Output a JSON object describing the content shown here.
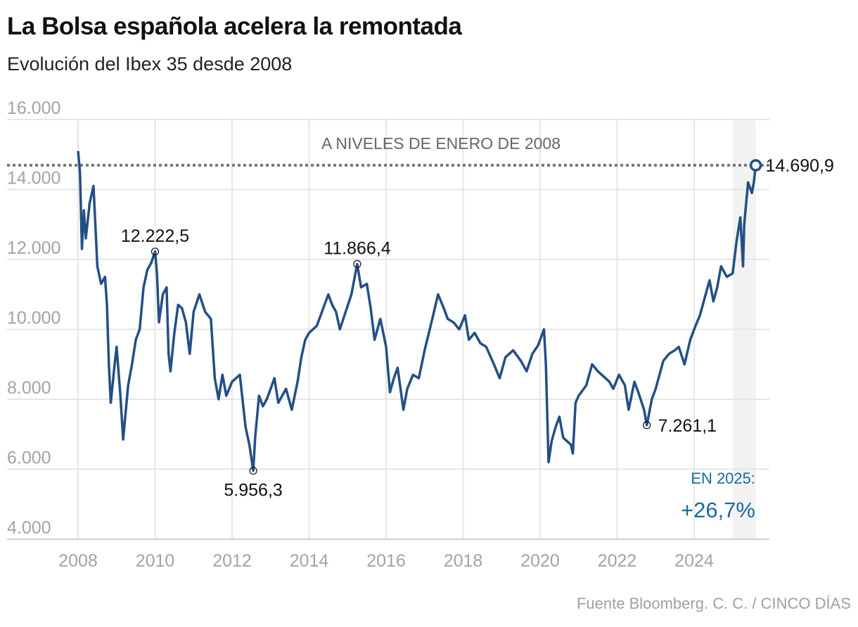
{
  "chart_data": {
    "type": "line",
    "title": "La Bolsa española acelera la remontada",
    "subtitle": "Evolución del Ibex 35 desde 2008",
    "source": "Fuente Bloomberg. C. C. / CINCO DÍAS",
    "xlim": [
      2008,
      2025.6
    ],
    "ylim": [
      4000,
      16000
    ],
    "x_ticks": [
      2008,
      2010,
      2012,
      2014,
      2016,
      2018,
      2020,
      2022,
      2024
    ],
    "x_tick_labels": [
      "2008",
      "2010",
      "2012",
      "2014",
      "2016",
      "2018",
      "2020",
      "2022",
      "2024"
    ],
    "y_ticks": [
      4000,
      6000,
      8000,
      10000,
      12000,
      14000,
      16000
    ],
    "y_tick_labels": [
      "4.000",
      "6.000",
      "8.000",
      "10.000",
      "12.000",
      "14.000",
      "16.000"
    ],
    "grid": true,
    "line_color": "#234f85",
    "reference_line": {
      "value": 14690.9,
      "label": "A NIVELES DE ENERO DE 2008",
      "color": "#777777"
    },
    "highlight_band": {
      "from": 2025.0,
      "to": 2025.6,
      "color": "#f2f2f2"
    },
    "annotations": [
      {
        "x": 2010.0,
        "y": 12222.5,
        "label": "12.222,5",
        "position": "above"
      },
      {
        "x": 2012.55,
        "y": 5956.3,
        "label": "5.956,3",
        "position": "below"
      },
      {
        "x": 2015.25,
        "y": 11866.4,
        "label": "11.866,4",
        "position": "above"
      },
      {
        "x": 2022.77,
        "y": 7261.1,
        "label": "7.261,1",
        "position": "right"
      },
      {
        "x": 2025.6,
        "y": 14690.9,
        "label": "14.690,9",
        "position": "right",
        "highlight": true
      }
    ],
    "ytd": {
      "label": "EN 2025:",
      "value": "+26,7%",
      "color": "#1a6aa0"
    },
    "series": [
      {
        "points": [
          [
            2008.0,
            15100
          ],
          [
            2008.05,
            14500
          ],
          [
            2008.1,
            12300
          ],
          [
            2008.15,
            13400
          ],
          [
            2008.2,
            12600
          ],
          [
            2008.25,
            13100
          ],
          [
            2008.3,
            13600
          ],
          [
            2008.4,
            14100
          ],
          [
            2008.45,
            13000
          ],
          [
            2008.5,
            11800
          ],
          [
            2008.6,
            11300
          ],
          [
            2008.7,
            11500
          ],
          [
            2008.75,
            10700
          ],
          [
            2008.8,
            9000
          ],
          [
            2008.85,
            7900
          ],
          [
            2008.95,
            9000
          ],
          [
            2009.0,
            9500
          ],
          [
            2009.1,
            8100
          ],
          [
            2009.17,
            6850
          ],
          [
            2009.3,
            8400
          ],
          [
            2009.4,
            9000
          ],
          [
            2009.5,
            9700
          ],
          [
            2009.6,
            10000
          ],
          [
            2009.7,
            11200
          ],
          [
            2009.8,
            11700
          ],
          [
            2009.9,
            11900
          ],
          [
            2010.0,
            12222.5
          ],
          [
            2010.05,
            11600
          ],
          [
            2010.1,
            10200
          ],
          [
            2010.2,
            11000
          ],
          [
            2010.3,
            11200
          ],
          [
            2010.35,
            9300
          ],
          [
            2010.4,
            8800
          ],
          [
            2010.5,
            9900
          ],
          [
            2010.6,
            10700
          ],
          [
            2010.7,
            10600
          ],
          [
            2010.8,
            10200
          ],
          [
            2010.9,
            9300
          ],
          [
            2011.0,
            10500
          ],
          [
            2011.15,
            11000
          ],
          [
            2011.3,
            10500
          ],
          [
            2011.45,
            10300
          ],
          [
            2011.55,
            8600
          ],
          [
            2011.65,
            8000
          ],
          [
            2011.75,
            8700
          ],
          [
            2011.85,
            8100
          ],
          [
            2012.0,
            8500
          ],
          [
            2012.2,
            8700
          ],
          [
            2012.35,
            7200
          ],
          [
            2012.45,
            6700
          ],
          [
            2012.55,
            5956.3
          ],
          [
            2012.6,
            6900
          ],
          [
            2012.7,
            8100
          ],
          [
            2012.8,
            7800
          ],
          [
            2012.9,
            8000
          ],
          [
            2013.0,
            8300
          ],
          [
            2013.1,
            8600
          ],
          [
            2013.2,
            7900
          ],
          [
            2013.4,
            8300
          ],
          [
            2013.55,
            7700
          ],
          [
            2013.7,
            8500
          ],
          [
            2013.8,
            9200
          ],
          [
            2013.9,
            9700
          ],
          [
            2014.0,
            9900
          ],
          [
            2014.2,
            10100
          ],
          [
            2014.4,
            10700
          ],
          [
            2014.5,
            11000
          ],
          [
            2014.6,
            10700
          ],
          [
            2014.7,
            10500
          ],
          [
            2014.8,
            10000
          ],
          [
            2014.95,
            10500
          ],
          [
            2015.1,
            11000
          ],
          [
            2015.25,
            11866.4
          ],
          [
            2015.35,
            11200
          ],
          [
            2015.5,
            11300
          ],
          [
            2015.6,
            10600
          ],
          [
            2015.7,
            9700
          ],
          [
            2015.85,
            10300
          ],
          [
            2016.0,
            9500
          ],
          [
            2016.1,
            8200
          ],
          [
            2016.2,
            8600
          ],
          [
            2016.3,
            8900
          ],
          [
            2016.45,
            7700
          ],
          [
            2016.55,
            8300
          ],
          [
            2016.7,
            8700
          ],
          [
            2016.85,
            8600
          ],
          [
            2017.0,
            9400
          ],
          [
            2017.2,
            10300
          ],
          [
            2017.35,
            11000
          ],
          [
            2017.5,
            10600
          ],
          [
            2017.6,
            10300
          ],
          [
            2017.75,
            10200
          ],
          [
            2017.9,
            10000
          ],
          [
            2018.05,
            10400
          ],
          [
            2018.15,
            9700
          ],
          [
            2018.3,
            9900
          ],
          [
            2018.45,
            9600
          ],
          [
            2018.6,
            9500
          ],
          [
            2018.8,
            9000
          ],
          [
            2018.95,
            8600
          ],
          [
            2019.1,
            9200
          ],
          [
            2019.3,
            9400
          ],
          [
            2019.5,
            9100
          ],
          [
            2019.65,
            8800
          ],
          [
            2019.8,
            9300
          ],
          [
            2019.95,
            9550
          ],
          [
            2020.1,
            10000
          ],
          [
            2020.15,
            9000
          ],
          [
            2020.22,
            6200
          ],
          [
            2020.3,
            6800
          ],
          [
            2020.4,
            7200
          ],
          [
            2020.5,
            7500
          ],
          [
            2020.6,
            6900
          ],
          [
            2020.8,
            6700
          ],
          [
            2020.85,
            6450
          ],
          [
            2020.92,
            7900
          ],
          [
            2021.0,
            8100
          ],
          [
            2021.2,
            8400
          ],
          [
            2021.35,
            9000
          ],
          [
            2021.5,
            8800
          ],
          [
            2021.6,
            8700
          ],
          [
            2021.8,
            8500
          ],
          [
            2021.9,
            8300
          ],
          [
            2022.05,
            8700
          ],
          [
            2022.2,
            8400
          ],
          [
            2022.3,
            7700
          ],
          [
            2022.45,
            8500
          ],
          [
            2022.55,
            8200
          ],
          [
            2022.7,
            7700
          ],
          [
            2022.77,
            7261.1
          ],
          [
            2022.9,
            8000
          ],
          [
            2023.0,
            8300
          ],
          [
            2023.2,
            9100
          ],
          [
            2023.35,
            9300
          ],
          [
            2023.5,
            9400
          ],
          [
            2023.6,
            9500
          ],
          [
            2023.75,
            9000
          ],
          [
            2023.9,
            9700
          ],
          [
            2024.0,
            10000
          ],
          [
            2024.15,
            10400
          ],
          [
            2024.3,
            11000
          ],
          [
            2024.4,
            11400
          ],
          [
            2024.5,
            10800
          ],
          [
            2024.6,
            11200
          ],
          [
            2024.7,
            11800
          ],
          [
            2024.85,
            11500
          ],
          [
            2025.0,
            11600
          ],
          [
            2025.1,
            12500
          ],
          [
            2025.2,
            13200
          ],
          [
            2025.27,
            11800
          ],
          [
            2025.3,
            13000
          ],
          [
            2025.4,
            14200
          ],
          [
            2025.5,
            13900
          ],
          [
            2025.55,
            14200
          ],
          [
            2025.6,
            14690.9
          ]
        ]
      }
    ]
  }
}
